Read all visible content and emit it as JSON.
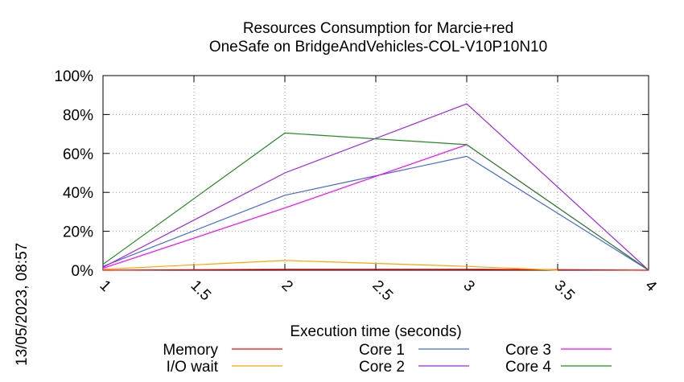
{
  "chart_data": {
    "type": "line",
    "title": "Resources Consumption for Marcie+red",
    "subtitle": "OneSafe on BridgeAndVehicles-COL-V10P10N10",
    "xlabel": "Execution time (seconds)",
    "ylabel": "",
    "xlim": [
      1,
      4
    ],
    "ylim": [
      0,
      100
    ],
    "x_ticks": [
      "1",
      "1.5",
      "2",
      "2.5",
      "3",
      "3.5",
      "4"
    ],
    "y_ticks": [
      "0%",
      "20%",
      "40%",
      "60%",
      "80%",
      "100%"
    ],
    "grid": true,
    "legend_position": "bottom",
    "series": [
      {
        "name": "Memory",
        "color": "#ff0000",
        "x": [
          1,
          2,
          3,
          4
        ],
        "y": [
          0,
          0.5,
          0.5,
          0
        ]
      },
      {
        "name": "I/O wait",
        "color": "#ffa500",
        "x": [
          1,
          2,
          3,
          3.5
        ],
        "y": [
          0.5,
          5,
          2,
          0
        ]
      },
      {
        "name": "Core 1",
        "color": "#4169e1",
        "x": [
          1,
          2,
          3,
          4
        ],
        "y": [
          2,
          38.5,
          58.5,
          0
        ]
      },
      {
        "name": "Core 2",
        "color": "#a020f0",
        "x": [
          1,
          2,
          3,
          4
        ],
        "y": [
          1.5,
          50,
          85.5,
          0
        ]
      },
      {
        "name": "Core 3",
        "color": "#ff00ff",
        "x": [
          1,
          2,
          3,
          4
        ],
        "y": [
          1,
          32,
          64.5,
          0
        ]
      },
      {
        "name": "Core 4",
        "color": "#228b22",
        "x": [
          1,
          2,
          3,
          4
        ],
        "y": [
          3,
          70.5,
          64.5,
          0
        ]
      }
    ]
  },
  "timestamp": "13/05/2023, 08:57"
}
